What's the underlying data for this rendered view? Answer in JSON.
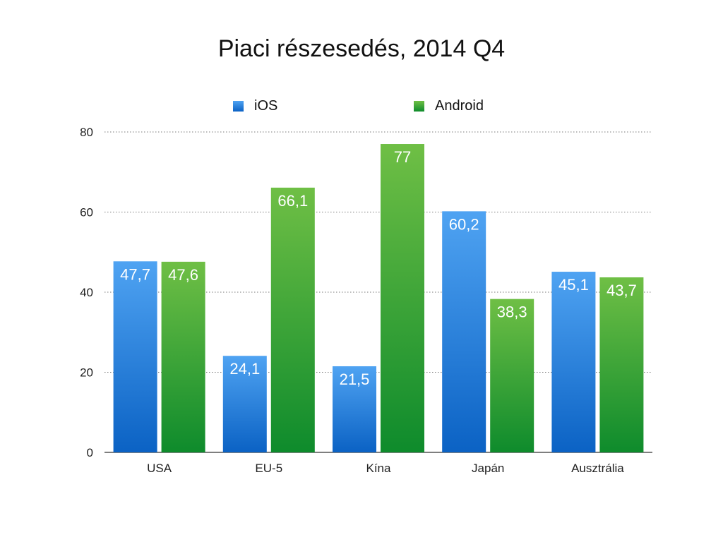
{
  "chart_data": {
    "type": "bar",
    "title": "Piaci részesedés, 2014 Q4",
    "xlabel": "",
    "ylabel": "",
    "categories": [
      "USA",
      "EU-5",
      "Kína",
      "Japán",
      "Ausztrália"
    ],
    "series": [
      {
        "name": "iOS",
        "values": [
          47.7,
          24.1,
          21.5,
          60.2,
          45.1
        ],
        "labels": [
          "47,7",
          "24,1",
          "21,5",
          "60,2",
          "45,1"
        ],
        "color_top": "#4fa3f2",
        "color_bottom": "#0b62c4"
      },
      {
        "name": "Android",
        "values": [
          47.6,
          66.1,
          77,
          38.3,
          43.7
        ],
        "labels": [
          "47,6",
          "66,1",
          "77",
          "38,3",
          "43,7"
        ],
        "color_top": "#6fbf45",
        "color_bottom": "#0e8b2c"
      }
    ],
    "ylim": [
      0,
      80
    ],
    "yticks": [
      0,
      20,
      40,
      60,
      80
    ],
    "grid": true,
    "legend_position": "top"
  }
}
